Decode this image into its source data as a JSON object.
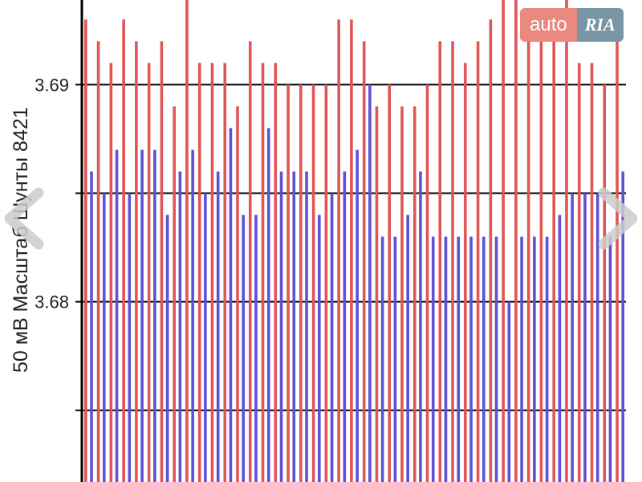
{
  "watermark": {
    "part1": "auto",
    "part2": "RIA"
  },
  "side_title": {
    "text": "50 мВ Масштаб  Шунты 8421"
  },
  "colors": {
    "upper_bar": "#e05555",
    "lower_bar": "#5b52d6",
    "grid": "#000000",
    "nav_arrow": "#cccccc",
    "background": "#ffffff"
  },
  "icons": {
    "left": "chevron-left-icon",
    "right": "chevron-right-icon"
  },
  "chart_data": {
    "type": "bar",
    "ylim": [
      3.6717,
      3.6939
    ],
    "grid": true,
    "yticks": [
      {
        "value": 3.69,
        "label": "3.69"
      },
      {
        "value": 3.685,
        "label": ""
      },
      {
        "value": 3.68,
        "label": "3.68"
      },
      {
        "value": 3.675,
        "label": ""
      },
      {
        "value": 3.695,
        "label": ""
      }
    ],
    "series": [
      {
        "values": [
          3.693,
          3.692,
          3.691,
          3.693,
          3.692,
          3.691,
          3.692,
          3.689,
          3.694,
          3.691,
          3.691,
          3.691,
          3.689,
          3.692,
          3.691,
          3.691,
          3.69,
          3.69,
          3.69,
          3.69,
          3.693,
          3.693,
          3.692,
          3.689,
          3.69,
          3.689,
          3.689,
          3.69,
          3.692,
          3.692,
          3.691,
          3.692,
          3.693,
          3.694,
          3.694,
          3.692,
          3.693,
          3.693,
          3.694,
          3.691,
          3.691,
          3.69,
          3.693
        ]
      },
      {
        "values": [
          3.686,
          3.685,
          3.687,
          3.685,
          3.687,
          3.687,
          3.684,
          3.686,
          3.687,
          3.685,
          3.686,
          3.688,
          3.684,
          3.684,
          3.688,
          3.686,
          3.686,
          3.686,
          3.684,
          3.685,
          3.686,
          3.687,
          3.69,
          3.683,
          3.683,
          3.684,
          3.686,
          3.683,
          3.683,
          3.683,
          3.683,
          3.683,
          3.683,
          3.68,
          3.683,
          3.683,
          3.683,
          3.684,
          3.685,
          3.685,
          3.685,
          3.683,
          3.686
        ]
      }
    ]
  }
}
